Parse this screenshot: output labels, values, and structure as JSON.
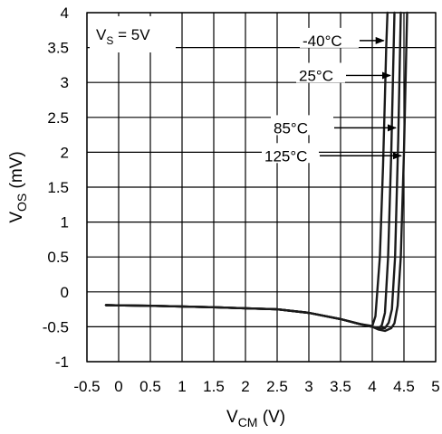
{
  "chart_data": {
    "type": "line",
    "xlabel": {
      "main": "V",
      "sub": "CM",
      "unit": " (V)"
    },
    "ylabel": {
      "main": "V",
      "sub": "OS",
      "unit": " (mV)"
    },
    "xlim": [
      -0.5,
      5
    ],
    "ylim": [
      -1,
      4
    ],
    "x_ticks": [
      "-0.5",
      "0",
      "0.5",
      "1",
      "1.5",
      "2",
      "2.5",
      "3",
      "3.5",
      "4",
      "4.5",
      "5"
    ],
    "y_ticks": [
      "-1",
      "-0.5",
      "0",
      "0.5",
      "1",
      "1.5",
      "2",
      "2.5",
      "3",
      "3.5",
      "4"
    ],
    "grid": true,
    "annotation": {
      "main": "V",
      "sub": "S",
      "rest": " = 5V"
    },
    "series": [
      {
        "name": "-40°C",
        "arrow_y": 3.6,
        "x": [
          -0.2,
          0.5,
          1.5,
          2.5,
          3.0,
          3.5,
          3.8,
          4.0,
          4.05,
          4.12,
          4.17,
          4.2,
          4.22,
          4.24
        ],
        "y": [
          -0.19,
          -0.2,
          -0.22,
          -0.25,
          -0.3,
          -0.39,
          -0.46,
          -0.49,
          -0.35,
          0.5,
          1.8,
          2.8,
          3.5,
          4.0
        ]
      },
      {
        "name": "25°C",
        "arrow_y": 3.1,
        "x": [
          -0.2,
          0.5,
          1.5,
          2.5,
          3.0,
          3.5,
          3.8,
          4.0,
          4.1,
          4.15,
          4.2,
          4.25,
          4.3,
          4.33,
          4.35
        ],
        "y": [
          -0.19,
          -0.2,
          -0.22,
          -0.25,
          -0.3,
          -0.39,
          -0.46,
          -0.5,
          -0.52,
          -0.48,
          -0.3,
          0.5,
          2.0,
          3.2,
          4.0
        ]
      },
      {
        "name": "85°C",
        "arrow_y": 2.35,
        "x": [
          -0.2,
          0.5,
          1.5,
          2.5,
          3.0,
          3.5,
          3.8,
          4.0,
          4.1,
          4.2,
          4.26,
          4.31,
          4.36,
          4.41,
          4.45
        ],
        "y": [
          -0.19,
          -0.2,
          -0.22,
          -0.25,
          -0.3,
          -0.39,
          -0.46,
          -0.5,
          -0.53,
          -0.52,
          -0.44,
          -0.25,
          0.5,
          2.2,
          4.0
        ]
      },
      {
        "name": "125°C",
        "arrow_y": 1.95,
        "x": [
          -0.2,
          0.5,
          1.5,
          2.5,
          3.0,
          3.5,
          3.8,
          4.0,
          4.1,
          4.2,
          4.3,
          4.35,
          4.4,
          4.45,
          4.5,
          4.55
        ],
        "y": [
          -0.19,
          -0.2,
          -0.22,
          -0.25,
          -0.3,
          -0.39,
          -0.46,
          -0.5,
          -0.54,
          -0.56,
          -0.52,
          -0.45,
          -0.2,
          0.5,
          2.0,
          4.0
        ]
      }
    ]
  }
}
